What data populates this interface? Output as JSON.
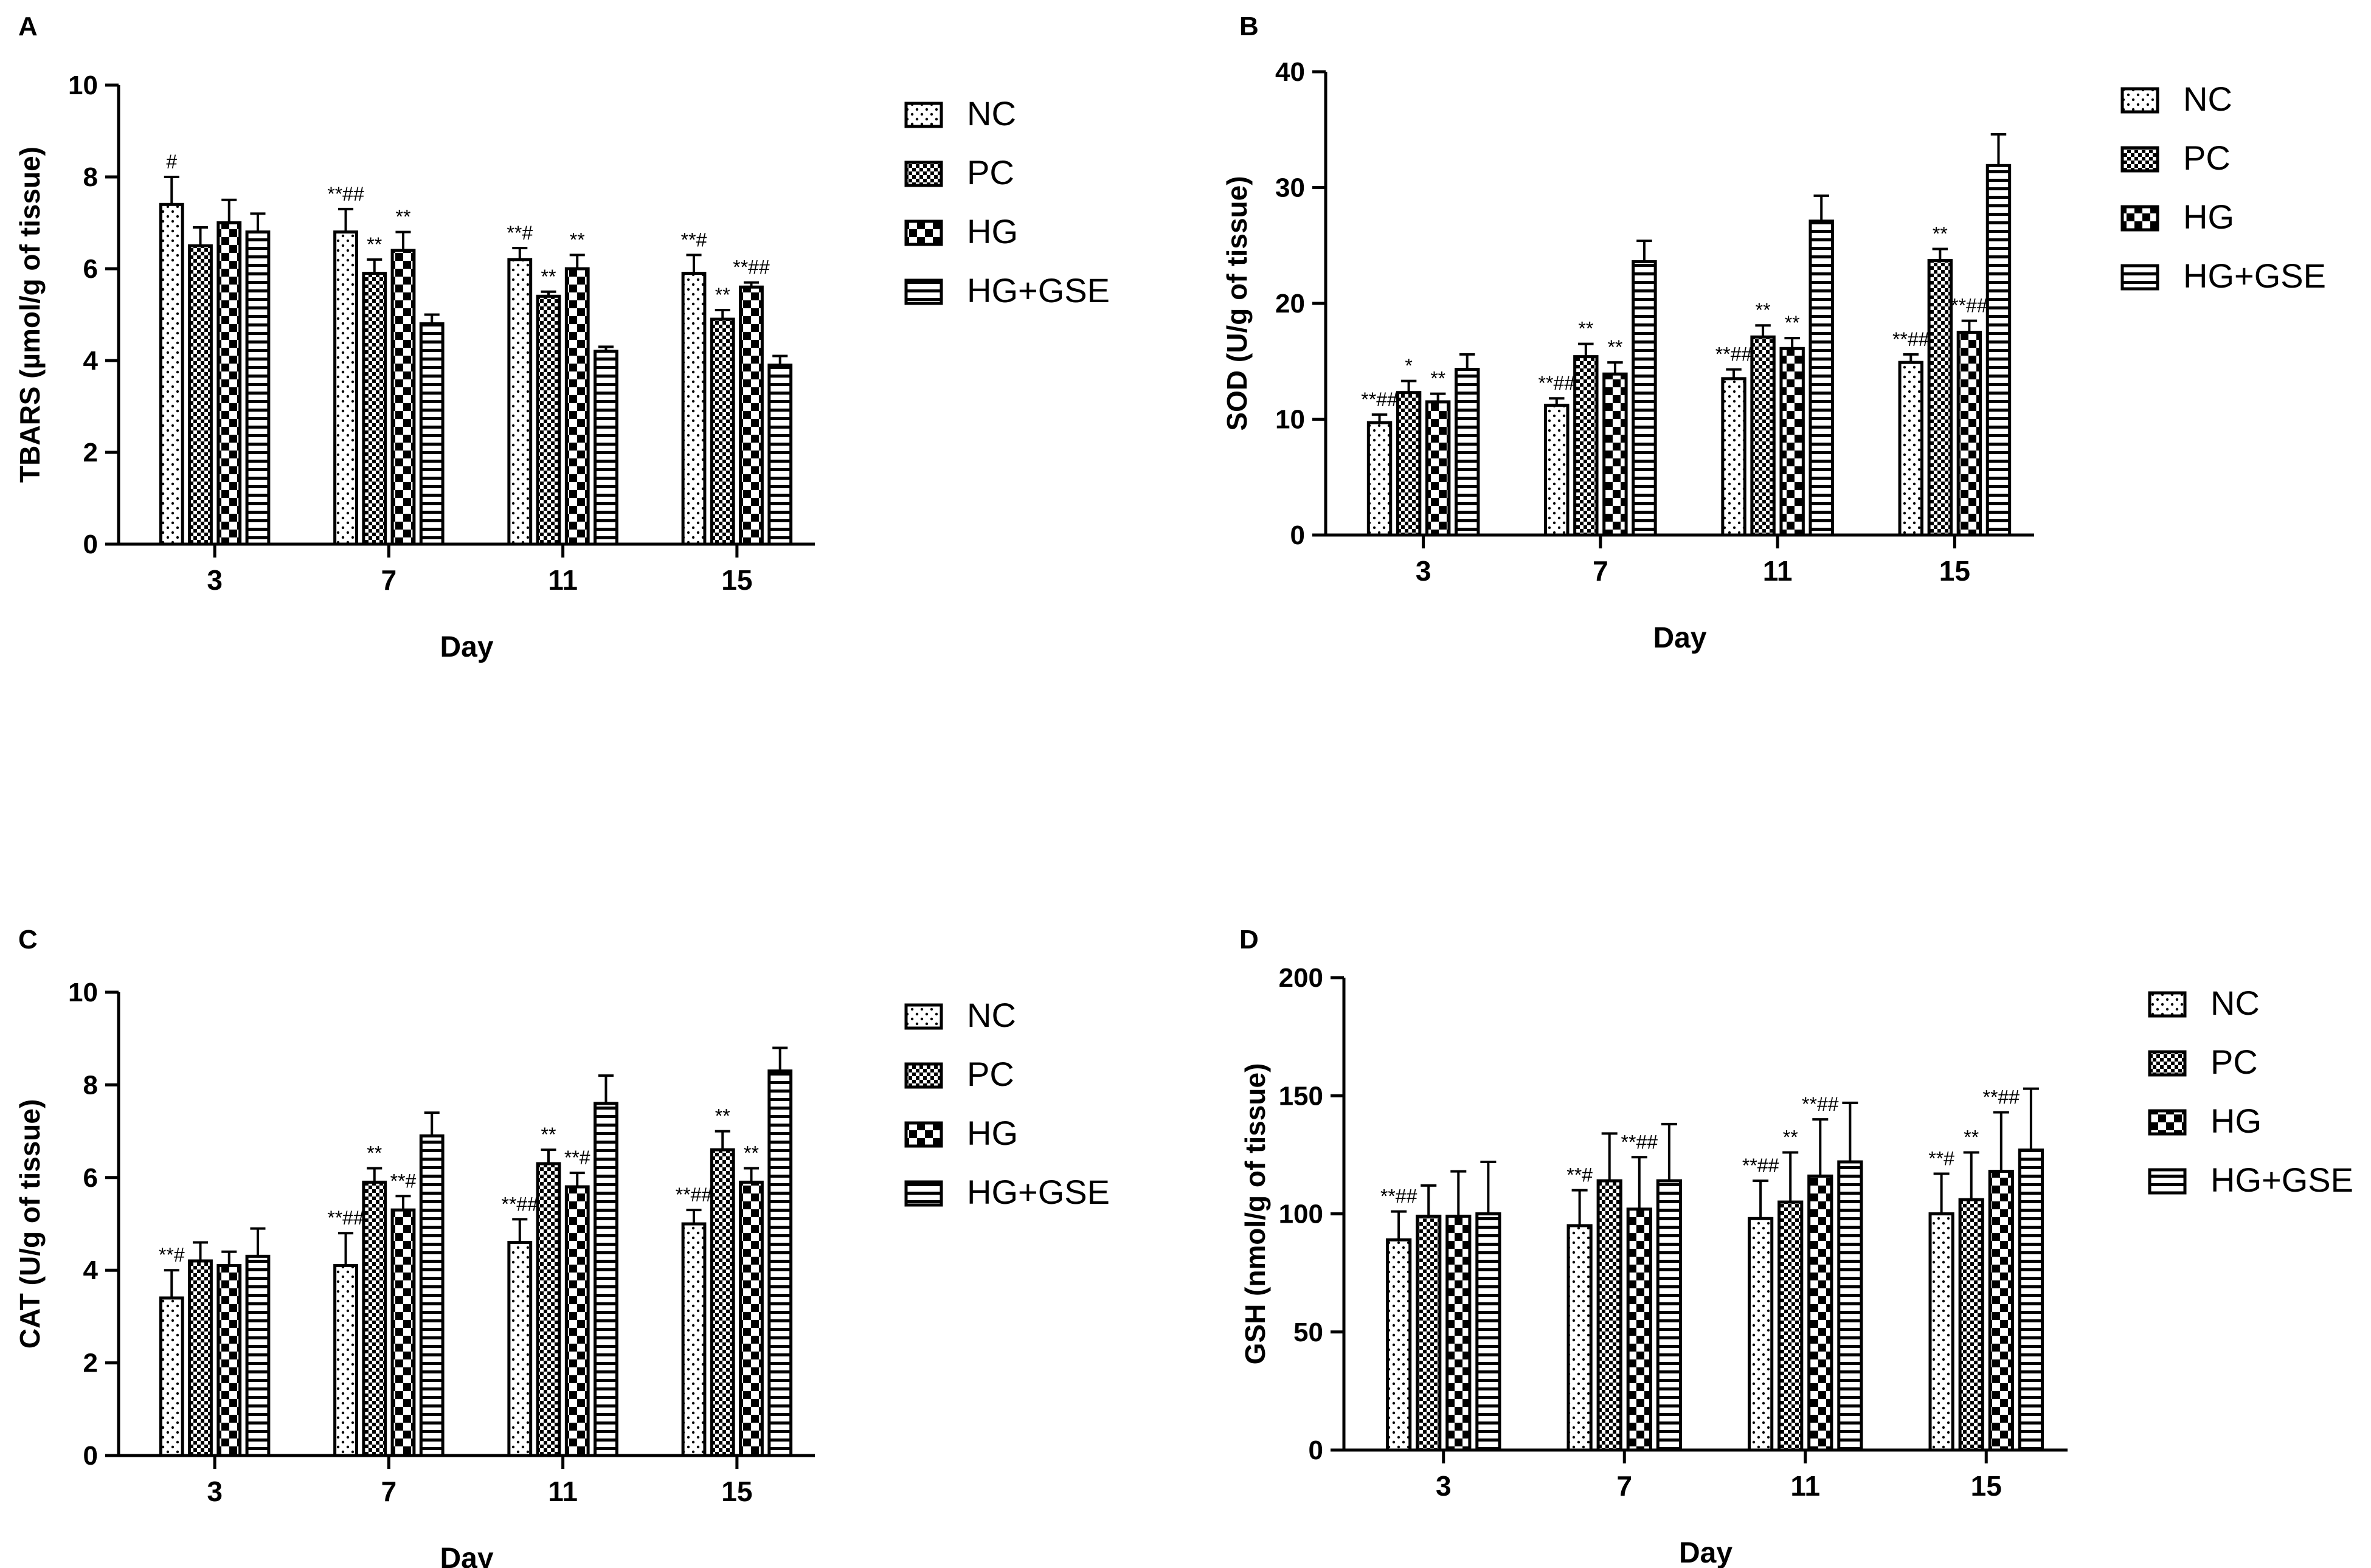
{
  "figure": {
    "days_label": "Day",
    "groups": [
      "NC",
      "PC",
      "HG",
      "HG+GSE"
    ]
  },
  "chart_data": [
    {
      "panel": "A",
      "type": "bar",
      "categories": [
        "3",
        "7",
        "11",
        "15"
      ],
      "xlabel": "Day",
      "ylabel": "TBARS (µmol/g of tissue)",
      "ylim": [
        0,
        10
      ],
      "yticks": [
        0,
        2,
        4,
        6,
        8,
        10
      ],
      "series": [
        {
          "name": "NC",
          "pattern": "dots",
          "values": [
            7.4,
            6.8,
            6.2,
            5.9
          ],
          "errors": [
            0.6,
            0.5,
            0.25,
            0.4
          ],
          "labels": [
            "#",
            "**##",
            "**#",
            "**#"
          ]
        },
        {
          "name": "PC",
          "pattern": "checker",
          "values": [
            6.5,
            5.9,
            5.4,
            4.9
          ],
          "errors": [
            0.4,
            0.3,
            0.1,
            0.2
          ],
          "labels": [
            "",
            "**",
            "**",
            "**"
          ]
        },
        {
          "name": "HG",
          "pattern": "bigchecker",
          "values": [
            7.0,
            6.4,
            6.0,
            5.6
          ],
          "errors": [
            0.5,
            0.4,
            0.3,
            0.1
          ],
          "labels": [
            "",
            "**",
            "**",
            "**##"
          ]
        },
        {
          "name": "HG+GSE",
          "pattern": "hlines",
          "values": [
            6.8,
            4.8,
            4.2,
            3.9
          ],
          "errors": [
            0.4,
            0.2,
            0.1,
            0.2
          ],
          "labels": [
            "",
            "",
            "",
            ""
          ]
        }
      ]
    },
    {
      "panel": "B",
      "type": "bar",
      "categories": [
        "3",
        "7",
        "11",
        "15"
      ],
      "xlabel": "Day",
      "ylabel": "SOD (U/g of tissue)",
      "ylim": [
        0,
        40
      ],
      "yticks": [
        0,
        10,
        20,
        30,
        40
      ],
      "series": [
        {
          "name": "NC",
          "pattern": "dots",
          "values": [
            9.7,
            11.2,
            13.5,
            14.9
          ],
          "errors": [
            0.7,
            0.6,
            0.8,
            0.7
          ],
          "labels": [
            "**##",
            "**##",
            "**##",
            "**##"
          ]
        },
        {
          "name": "PC",
          "pattern": "checker",
          "values": [
            12.3,
            15.4,
            17.1,
            23.7
          ],
          "errors": [
            1.0,
            1.1,
            1.0,
            1.0
          ],
          "labels": [
            "*",
            "**",
            "**",
            "**"
          ]
        },
        {
          "name": "HG",
          "pattern": "bigchecker",
          "values": [
            11.5,
            13.9,
            16.1,
            17.5
          ],
          "errors": [
            0.7,
            1.0,
            0.9,
            1.0
          ],
          "labels": [
            "**",
            "**",
            "**",
            "**##"
          ]
        },
        {
          "name": "HG+GSE",
          "pattern": "hlines",
          "values": [
            14.3,
            23.6,
            27.1,
            31.9
          ],
          "errors": [
            1.3,
            1.8,
            2.2,
            2.7
          ],
          "labels": [
            "",
            "",
            "",
            ""
          ]
        }
      ]
    },
    {
      "panel": "C",
      "type": "bar",
      "categories": [
        "3",
        "7",
        "11",
        "15"
      ],
      "xlabel": "Day",
      "ylabel": "CAT (U/g of tissue)",
      "ylim": [
        0,
        10
      ],
      "yticks": [
        0,
        2,
        4,
        6,
        8,
        10
      ],
      "series": [
        {
          "name": "NC",
          "pattern": "dots",
          "values": [
            3.4,
            4.1,
            4.6,
            5.0
          ],
          "errors": [
            0.6,
            0.7,
            0.5,
            0.3
          ],
          "labels": [
            "**#",
            "**##",
            "**##",
            "**##"
          ]
        },
        {
          "name": "PC",
          "pattern": "checker",
          "values": [
            4.2,
            5.9,
            6.3,
            6.6
          ],
          "errors": [
            0.4,
            0.3,
            0.3,
            0.4
          ],
          "labels": [
            "",
            "**",
            "**",
            "**"
          ]
        },
        {
          "name": "HG",
          "pattern": "bigchecker",
          "values": [
            4.1,
            5.3,
            5.8,
            5.9
          ],
          "errors": [
            0.3,
            0.3,
            0.3,
            0.3
          ],
          "labels": [
            "",
            "**#",
            "**#",
            "**"
          ]
        },
        {
          "name": "HG+GSE",
          "pattern": "hlines",
          "values": [
            4.3,
            6.9,
            7.6,
            8.3
          ],
          "errors": [
            0.6,
            0.5,
            0.6,
            0.5
          ],
          "labels": [
            "",
            "",
            "",
            ""
          ]
        }
      ]
    },
    {
      "panel": "D",
      "type": "bar",
      "categories": [
        "3",
        "7",
        "11",
        "15"
      ],
      "xlabel": "Day",
      "ylabel": "GSH (nmol/g of tissue)",
      "ylim": [
        0,
        200
      ],
      "yticks": [
        0,
        50,
        100,
        150,
        200
      ],
      "series": [
        {
          "name": "NC",
          "pattern": "dots",
          "values": [
            89,
            95,
            98,
            100
          ],
          "errors": [
            12,
            15,
            16,
            17
          ],
          "labels": [
            "**##",
            "**#",
            "**##",
            "**#"
          ]
        },
        {
          "name": "PC",
          "pattern": "checker",
          "values": [
            99,
            114,
            105,
            106
          ],
          "errors": [
            13,
            20,
            21,
            20
          ],
          "labels": [
            "",
            "",
            "**",
            "**"
          ]
        },
        {
          "name": "HG",
          "pattern": "bigchecker",
          "values": [
            99,
            102,
            116,
            118
          ],
          "errors": [
            19,
            22,
            24,
            25
          ],
          "labels": [
            "",
            "**##",
            "**##",
            "**##"
          ]
        },
        {
          "name": "HG+GSE",
          "pattern": "hlines",
          "values": [
            100,
            114,
            122,
            127
          ],
          "errors": [
            22,
            24,
            25,
            26
          ],
          "labels": [
            "",
            "",
            "",
            ""
          ]
        }
      ]
    }
  ]
}
